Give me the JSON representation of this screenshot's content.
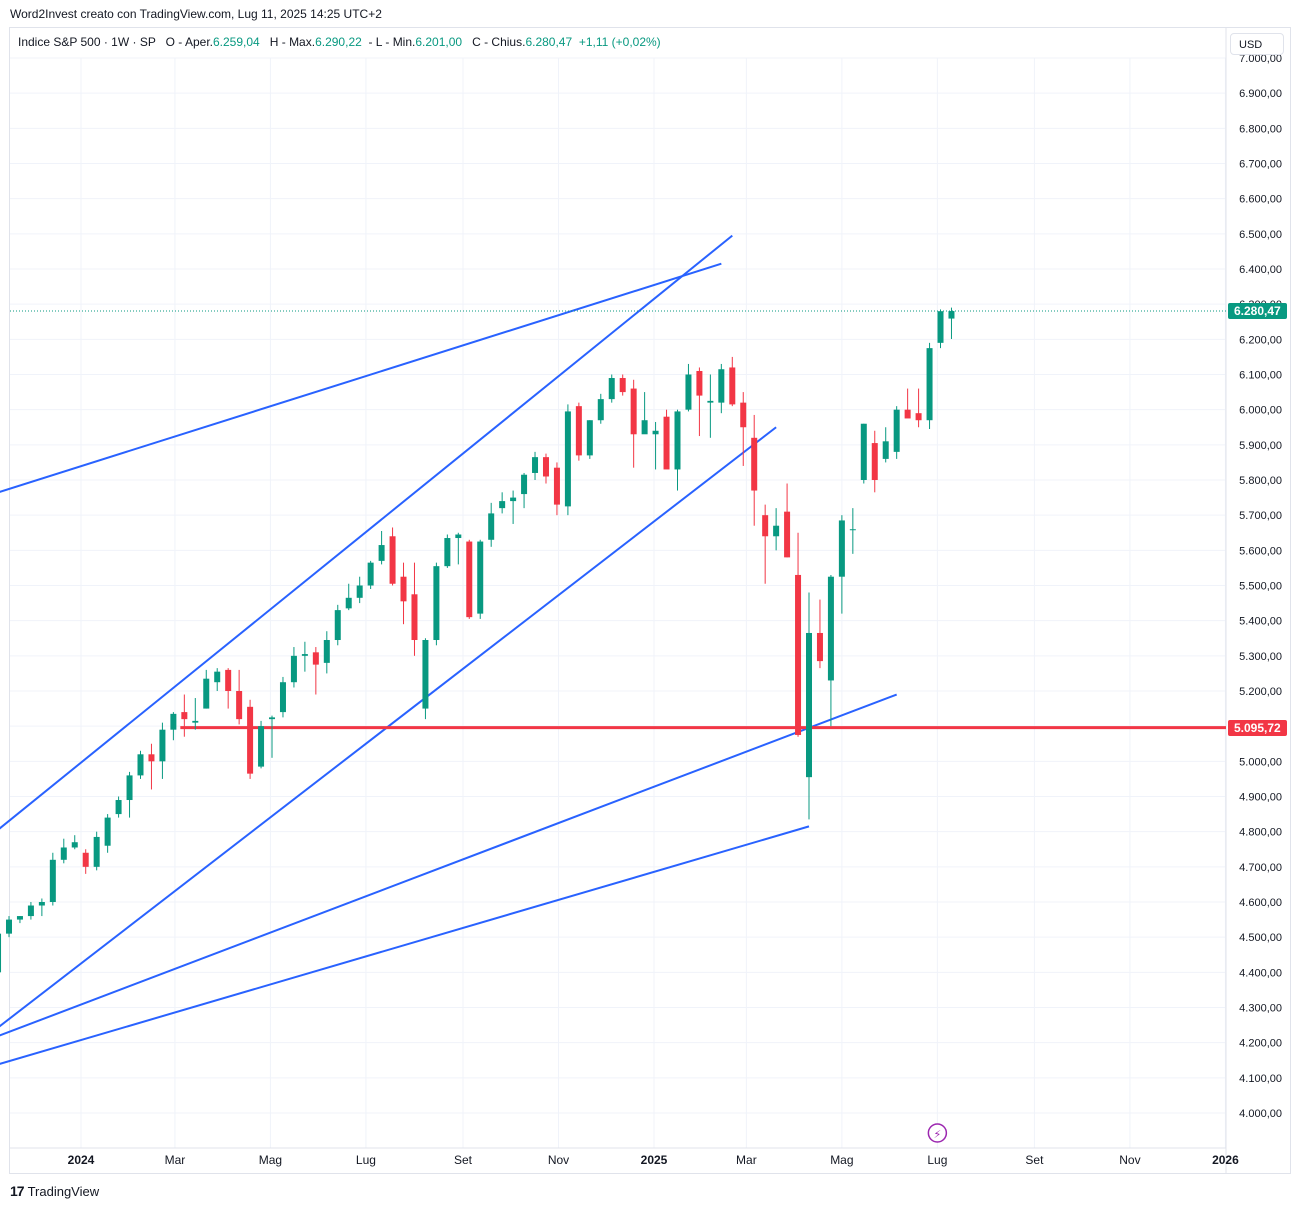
{
  "caption": "Word2Invest creato con TradingView.com, Lug 11, 2025 14:25 UTC+2",
  "legend": {
    "symbol": "Indice S&P 500 · 1W · SP",
    "open_label": "O - Aper.",
    "open": "6.259,04",
    "high_label": "H - Max.",
    "high": "6.290,22",
    "low_label": "L - Min.",
    "low": "6.201,00",
    "close_label": "C - Chius.",
    "close": "6.280,47",
    "change": "+1,11 (+0,02%)"
  },
  "currency_button": "USD",
  "brand": "TradingView",
  "brand_logo": "17",
  "lightning_icon": "⚡",
  "price_tags": {
    "last": "6.280,47",
    "level": "5.095,72"
  },
  "colors": {
    "up": "#089981",
    "down": "#f23645",
    "trendline": "#2962ff",
    "level_line": "#f23645"
  },
  "chart_data": {
    "type": "candlestick",
    "interval": "1W",
    "ylim": [
      3950,
      7000
    ],
    "y_ticks": [
      "4.000,00",
      "4.100,00",
      "4.200,00",
      "4.300,00",
      "4.400,00",
      "4.500,00",
      "4.600,00",
      "4.700,00",
      "4.800,00",
      "4.900,00",
      "5.000,00",
      "5.100,00",
      "5.200,00",
      "5.300,00",
      "5.400,00",
      "5.500,00",
      "5.600,00",
      "5.700,00",
      "5.800,00",
      "5.900,00",
      "6.000,00",
      "6.100,00",
      "6.200,00",
      "6.300,00",
      "6.400,00",
      "6.500,00",
      "6.600,00",
      "6.700,00",
      "6.800,00",
      "6.900,00",
      "7.000,00"
    ],
    "x_ticks": [
      {
        "label": "2024",
        "date": "2024-01-01",
        "bold": true
      },
      {
        "label": "Mar",
        "date": "2024-03-01"
      },
      {
        "label": "Mag",
        "date": "2024-05-01"
      },
      {
        "label": "Lug",
        "date": "2024-07-01"
      },
      {
        "label": "Set",
        "date": "2024-09-01"
      },
      {
        "label": "Nov",
        "date": "2024-11-01"
      },
      {
        "label": "2025",
        "date": "2025-01-01",
        "bold": true
      },
      {
        "label": "Mar",
        "date": "2025-03-01"
      },
      {
        "label": "Mag",
        "date": "2025-05-01"
      },
      {
        "label": "Lug",
        "date": "2025-07-01"
      },
      {
        "label": "Set",
        "date": "2025-09-01"
      },
      {
        "label": "Nov",
        "date": "2025-11-01"
      },
      {
        "label": "2026",
        "date": "2026-01-01",
        "bold": true
      }
    ],
    "candles": [
      {
        "date": "2023-11-06",
        "open": 4400,
        "high": 4520,
        "low": 4390,
        "close": 4510
      },
      {
        "date": "2023-11-13",
        "open": 4510,
        "high": 4560,
        "low": 4500,
        "close": 4550
      },
      {
        "date": "2023-11-20",
        "open": 4550,
        "high": 4560,
        "low": 4540,
        "close": 4560
      },
      {
        "date": "2023-11-27",
        "open": 4560,
        "high": 4600,
        "low": 4550,
        "close": 4590
      },
      {
        "date": "2023-12-04",
        "open": 4590,
        "high": 4610,
        "low": 4560,
        "close": 4600
      },
      {
        "date": "2023-12-11",
        "open": 4600,
        "high": 4740,
        "low": 4590,
        "close": 4720
      },
      {
        "date": "2023-12-18",
        "open": 4720,
        "high": 4780,
        "low": 4710,
        "close": 4755
      },
      {
        "date": "2023-12-25",
        "open": 4755,
        "high": 4790,
        "low": 4750,
        "close": 4770
      },
      {
        "date": "2024-01-01",
        "open": 4740,
        "high": 4750,
        "low": 4680,
        "close": 4700
      },
      {
        "date": "2024-01-08",
        "open": 4700,
        "high": 4800,
        "low": 4690,
        "close": 4785
      },
      {
        "date": "2024-01-15",
        "open": 4760,
        "high": 4850,
        "low": 4740,
        "close": 4840
      },
      {
        "date": "2024-01-22",
        "open": 4850,
        "high": 4900,
        "low": 4840,
        "close": 4890
      },
      {
        "date": "2024-01-29",
        "open": 4890,
        "high": 4970,
        "low": 4840,
        "close": 4960
      },
      {
        "date": "2024-02-05",
        "open": 4960,
        "high": 5030,
        "low": 4950,
        "close": 5020
      },
      {
        "date": "2024-02-12",
        "open": 5020,
        "high": 5050,
        "low": 4920,
        "close": 5000
      },
      {
        "date": "2024-02-19",
        "open": 5000,
        "high": 5110,
        "low": 4950,
        "close": 5090
      },
      {
        "date": "2024-02-26",
        "open": 5090,
        "high": 5140,
        "low": 5060,
        "close": 5135
      },
      {
        "date": "2024-03-04",
        "open": 5140,
        "high": 5190,
        "low": 5070,
        "close": 5120
      },
      {
        "date": "2024-03-11",
        "open": 5110,
        "high": 5180,
        "low": 5090,
        "close": 5115
      },
      {
        "date": "2024-03-18",
        "open": 5150,
        "high": 5260,
        "low": 5150,
        "close": 5235
      },
      {
        "date": "2024-03-25",
        "open": 5225,
        "high": 5265,
        "low": 5200,
        "close": 5255
      },
      {
        "date": "2024-04-01",
        "open": 5260,
        "high": 5265,
        "low": 5150,
        "close": 5200
      },
      {
        "date": "2024-04-08",
        "open": 5200,
        "high": 5260,
        "low": 5105,
        "close": 5120
      },
      {
        "date": "2024-04-15",
        "open": 5155,
        "high": 5175,
        "low": 4950,
        "close": 4965
      },
      {
        "date": "2024-04-22",
        "open": 4985,
        "high": 5115,
        "low": 4980,
        "close": 5100
      },
      {
        "date": "2024-04-29",
        "open": 5120,
        "high": 5130,
        "low": 5010,
        "close": 5125
      },
      {
        "date": "2024-05-06",
        "open": 5140,
        "high": 5240,
        "low": 5125,
        "close": 5225
      },
      {
        "date": "2024-05-13",
        "open": 5225,
        "high": 5325,
        "low": 5210,
        "close": 5300
      },
      {
        "date": "2024-05-20",
        "open": 5300,
        "high": 5340,
        "low": 5255,
        "close": 5305
      },
      {
        "date": "2024-05-27",
        "open": 5310,
        "high": 5325,
        "low": 5190,
        "close": 5275
      },
      {
        "date": "2024-06-03",
        "open": 5280,
        "high": 5370,
        "low": 5250,
        "close": 5345
      },
      {
        "date": "2024-06-10",
        "open": 5345,
        "high": 5445,
        "low": 5330,
        "close": 5430
      },
      {
        "date": "2024-06-17",
        "open": 5435,
        "high": 5505,
        "low": 5430,
        "close": 5465
      },
      {
        "date": "2024-06-24",
        "open": 5465,
        "high": 5525,
        "low": 5450,
        "close": 5500
      },
      {
        "date": "2024-07-01",
        "open": 5500,
        "high": 5570,
        "low": 5490,
        "close": 5565
      },
      {
        "date": "2024-07-08",
        "open": 5570,
        "high": 5655,
        "low": 5560,
        "close": 5615
      },
      {
        "date": "2024-07-15",
        "open": 5640,
        "high": 5665,
        "low": 5500,
        "close": 5505
      },
      {
        "date": "2024-07-22",
        "open": 5525,
        "high": 5565,
        "low": 5390,
        "close": 5455
      },
      {
        "date": "2024-07-29",
        "open": 5475,
        "high": 5565,
        "low": 5300,
        "close": 5345
      },
      {
        "date": "2024-08-05",
        "open": 5150,
        "high": 5350,
        "low": 5120,
        "close": 5345
      },
      {
        "date": "2024-08-12",
        "open": 5345,
        "high": 5565,
        "low": 5330,
        "close": 5555
      },
      {
        "date": "2024-08-19",
        "open": 5555,
        "high": 5645,
        "low": 5550,
        "close": 5635
      },
      {
        "date": "2024-08-26",
        "open": 5635,
        "high": 5650,
        "low": 5560,
        "close": 5645
      },
      {
        "date": "2024-09-02",
        "open": 5625,
        "high": 5630,
        "low": 5405,
        "close": 5410
      },
      {
        "date": "2024-09-09",
        "open": 5420,
        "high": 5630,
        "low": 5405,
        "close": 5625
      },
      {
        "date": "2024-09-16",
        "open": 5630,
        "high": 5735,
        "low": 5610,
        "close": 5705
      },
      {
        "date": "2024-09-23",
        "open": 5720,
        "high": 5765,
        "low": 5705,
        "close": 5740
      },
      {
        "date": "2024-09-30",
        "open": 5740,
        "high": 5770,
        "low": 5675,
        "close": 5750
      },
      {
        "date": "2024-10-07",
        "open": 5760,
        "high": 5820,
        "low": 5720,
        "close": 5815
      },
      {
        "date": "2024-10-14",
        "open": 5820,
        "high": 5880,
        "low": 5800,
        "close": 5865
      },
      {
        "date": "2024-10-21",
        "open": 5865,
        "high": 5875,
        "low": 5790,
        "close": 5810
      },
      {
        "date": "2024-10-28",
        "open": 5835,
        "high": 5850,
        "low": 5700,
        "close": 5730
      },
      {
        "date": "2024-11-04",
        "open": 5725,
        "high": 6015,
        "low": 5700,
        "close": 5995
      },
      {
        "date": "2024-11-11",
        "open": 6010,
        "high": 6020,
        "low": 5855,
        "close": 5870
      },
      {
        "date": "2024-11-18",
        "open": 5870,
        "high": 5970,
        "low": 5860,
        "close": 5970
      },
      {
        "date": "2024-11-25",
        "open": 5970,
        "high": 6045,
        "low": 5960,
        "close": 6030
      },
      {
        "date": "2024-12-02",
        "open": 6030,
        "high": 6100,
        "low": 6020,
        "close": 6090
      },
      {
        "date": "2024-12-09",
        "open": 6090,
        "high": 6100,
        "low": 6040,
        "close": 6050
      },
      {
        "date": "2024-12-16",
        "open": 6060,
        "high": 6085,
        "low": 5835,
        "close": 5930
      },
      {
        "date": "2024-12-23",
        "open": 5930,
        "high": 6050,
        "low": 5935,
        "close": 5970
      },
      {
        "date": "2024-12-30",
        "open": 5930,
        "high": 5965,
        "low": 5830,
        "close": 5940
      },
      {
        "date": "2025-01-06",
        "open": 5980,
        "high": 6000,
        "low": 5850,
        "close": 5830
      },
      {
        "date": "2025-01-13",
        "open": 5830,
        "high": 6000,
        "low": 5770,
        "close": 5995
      },
      {
        "date": "2025-01-20",
        "open": 6000,
        "high": 6130,
        "low": 5995,
        "close": 6100
      },
      {
        "date": "2025-01-27",
        "open": 6110,
        "high": 6120,
        "low": 5925,
        "close": 6040
      },
      {
        "date": "2025-02-03",
        "open": 6020,
        "high": 6100,
        "low": 5920,
        "close": 6025
      },
      {
        "date": "2025-02-10",
        "open": 6020,
        "high": 6130,
        "low": 5990,
        "close": 6115
      },
      {
        "date": "2025-02-17",
        "open": 6120,
        "high": 6150,
        "low": 6010,
        "close": 6015
      },
      {
        "date": "2025-02-24",
        "open": 6020,
        "high": 6050,
        "low": 5840,
        "close": 5950
      },
      {
        "date": "2025-03-03",
        "open": 5920,
        "high": 5985,
        "low": 5670,
        "close": 5770
      },
      {
        "date": "2025-03-10",
        "open": 5700,
        "high": 5730,
        "low": 5505,
        "close": 5640
      },
      {
        "date": "2025-03-17",
        "open": 5640,
        "high": 5720,
        "low": 5600,
        "close": 5670
      },
      {
        "date": "2025-03-24",
        "open": 5710,
        "high": 5790,
        "low": 5580,
        "close": 5580
      },
      {
        "date": "2025-03-31",
        "open": 5530,
        "high": 5650,
        "low": 5070,
        "close": 5075
      },
      {
        "date": "2025-04-07",
        "open": 4955,
        "high": 5480,
        "low": 4835,
        "close": 5365
      },
      {
        "date": "2025-04-14",
        "open": 5365,
        "high": 5460,
        "low": 5265,
        "close": 5285
      },
      {
        "date": "2025-04-21",
        "open": 5230,
        "high": 5530,
        "low": 5100,
        "close": 5525
      },
      {
        "date": "2025-04-28",
        "open": 5525,
        "high": 5700,
        "low": 5420,
        "close": 5685
      },
      {
        "date": "2025-05-05",
        "open": 5660,
        "high": 5720,
        "low": 5590,
        "close": 5660
      },
      {
        "date": "2025-05-12",
        "open": 5800,
        "high": 5960,
        "low": 5790,
        "close": 5960
      },
      {
        "date": "2025-05-19",
        "open": 5905,
        "high": 5940,
        "low": 5765,
        "close": 5800
      },
      {
        "date": "2025-05-26",
        "open": 5860,
        "high": 5950,
        "low": 5850,
        "close": 5910
      },
      {
        "date": "2025-06-02",
        "open": 5880,
        "high": 6010,
        "low": 5860,
        "close": 6000
      },
      {
        "date": "2025-06-09",
        "open": 6000,
        "high": 6060,
        "low": 5980,
        "close": 5975
      },
      {
        "date": "2025-06-16",
        "open": 5990,
        "high": 6060,
        "low": 5950,
        "close": 5970
      },
      {
        "date": "2025-06-23",
        "open": 5970,
        "high": 6190,
        "low": 5945,
        "close": 6175
      },
      {
        "date": "2025-06-30",
        "open": 6190,
        "high": 6285,
        "low": 6175,
        "close": 6280
      },
      {
        "date": "2025-07-07",
        "open": 6259.04,
        "high": 6290.22,
        "low": 6201,
        "close": 6280.47
      }
    ],
    "horizontal_levels": [
      {
        "value": 5095.72,
        "label": "5.095,72",
        "from_date": "2024-03-04",
        "color": "#f23645"
      }
    ],
    "last_price": {
      "value": 6280.47,
      "label": "6.280,47"
    },
    "trendlines": [
      {
        "from": {
          "date": "2023-10-23",
          "value": 5745
        },
        "to": {
          "date": "2025-02-10",
          "value": 6415
        }
      },
      {
        "from": {
          "date": "2023-10-23",
          "value": 4755
        },
        "to": {
          "date": "2025-02-17",
          "value": 6495
        }
      },
      {
        "from": {
          "date": "2023-10-23",
          "value": 4195
        },
        "to": {
          "date": "2025-03-17",
          "value": 5950
        }
      },
      {
        "from": {
          "date": "2023-10-23",
          "value": 4195
        },
        "to": {
          "date": "2025-06-02",
          "value": 5190
        }
      },
      {
        "from": {
          "date": "2023-10-23",
          "value": 4120
        },
        "to": {
          "date": "2025-04-07",
          "value": 4815
        }
      }
    ]
  }
}
